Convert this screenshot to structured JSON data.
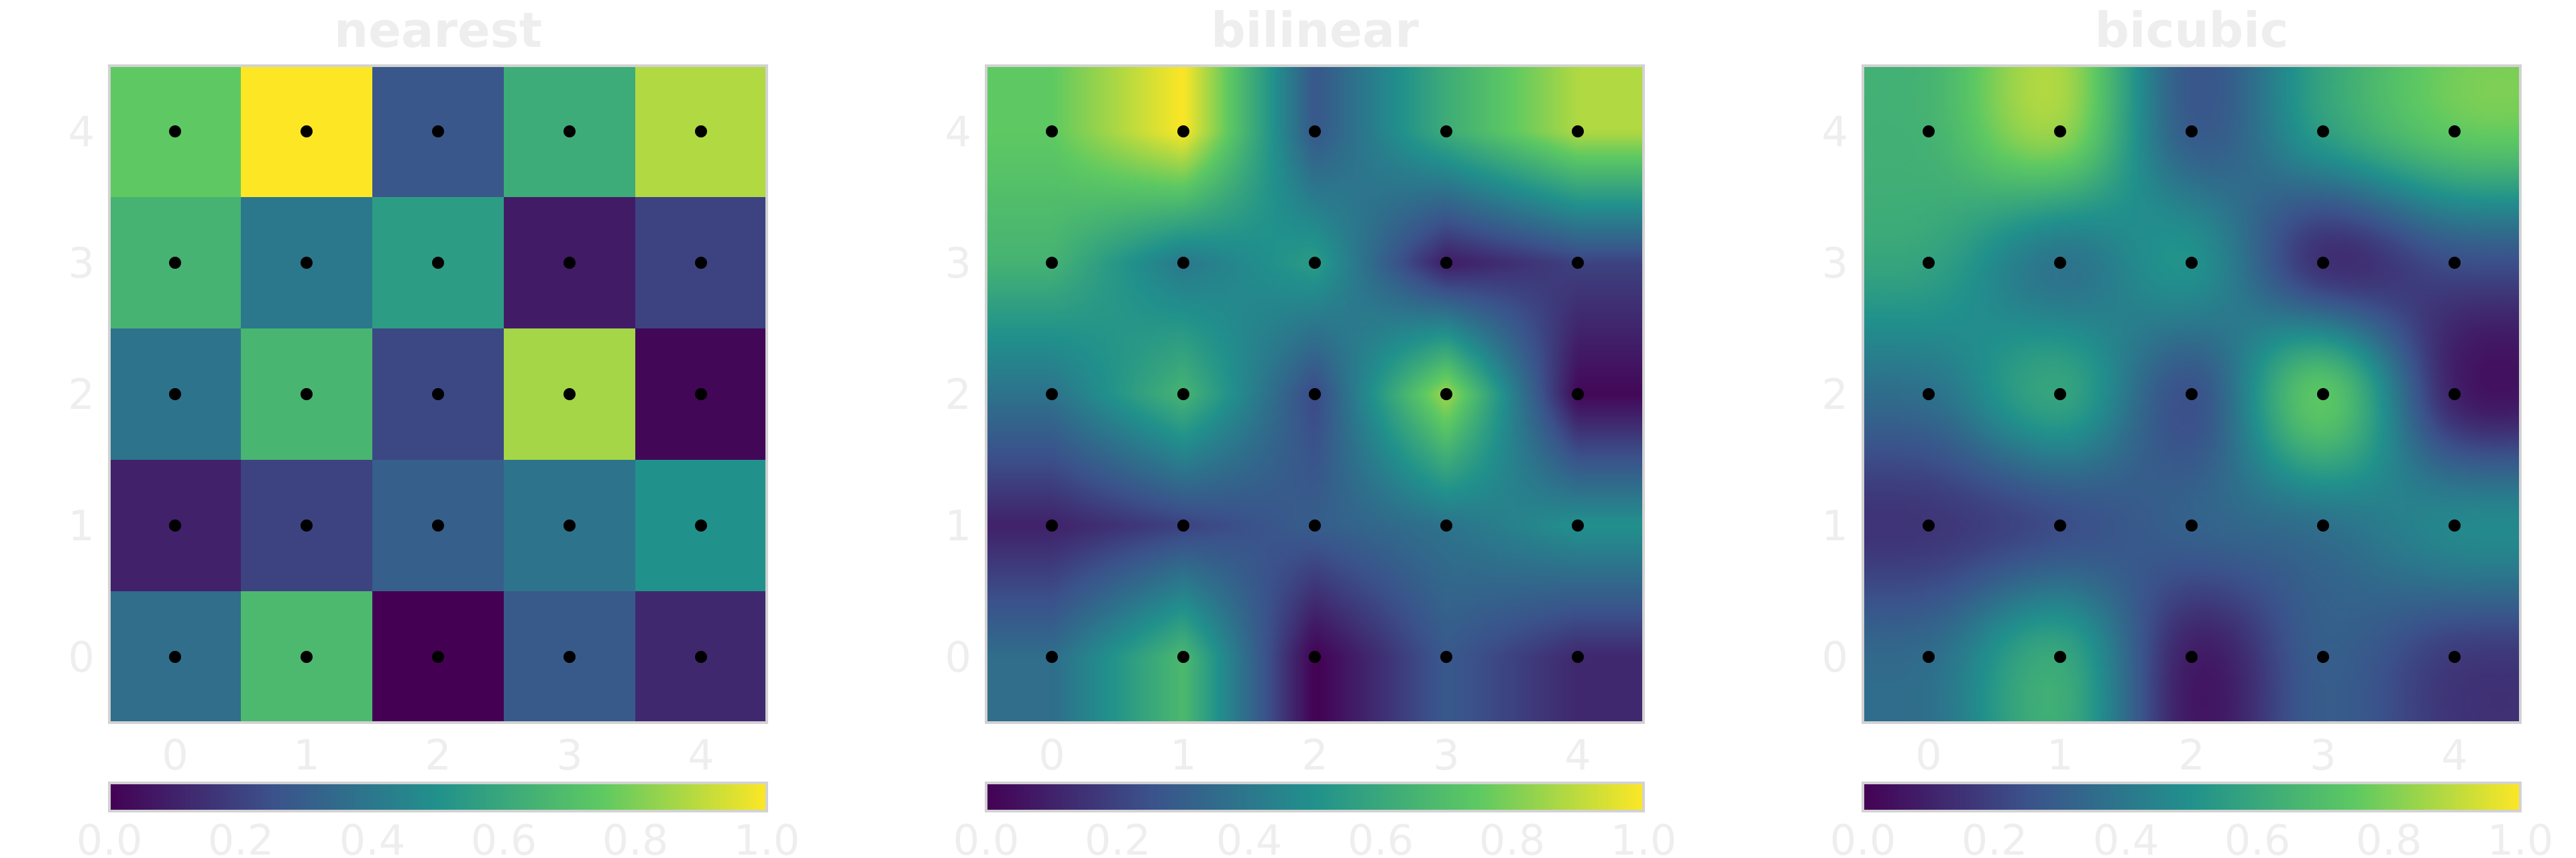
{
  "chart_data": {
    "type": "heatmap",
    "colormap": "viridis",
    "grid": [
      [
        0.36,
        0.68,
        0.0,
        0.28,
        0.12
      ],
      [
        0.1,
        0.2,
        0.3,
        0.38,
        0.5
      ],
      [
        0.38,
        0.66,
        0.22,
        0.86,
        0.02
      ],
      [
        0.65,
        0.4,
        0.55,
        0.08,
        0.2
      ],
      [
        0.75,
        1.0,
        0.27,
        0.62,
        0.88
      ]
    ],
    "panels": [
      {
        "title": "nearest",
        "interpolation": "nearest"
      },
      {
        "title": "bilinear",
        "interpolation": "bilinear"
      },
      {
        "title": "bicubic",
        "interpolation": "bicubic"
      }
    ],
    "x_ticks": [
      "0",
      "1",
      "2",
      "3",
      "4"
    ],
    "y_ticks": [
      "0",
      "1",
      "2",
      "3",
      "4"
    ],
    "xlim": [
      -0.5,
      4.5
    ],
    "ylim": [
      -0.5,
      4.5
    ],
    "points": "black dot at every integer grid point",
    "colorbar": {
      "orientation": "horizontal",
      "range": [
        0.0,
        1.0
      ],
      "ticks": [
        "0.0",
        "0.2",
        "0.4",
        "0.6",
        "0.8",
        "1.0"
      ]
    }
  },
  "colors": {
    "viridis": [
      "#440154",
      "#3b528b",
      "#21918c",
      "#5ec962",
      "#fde725"
    ],
    "point": "#000000",
    "frame": "#d2d2d2",
    "text": "#eeeeee"
  }
}
